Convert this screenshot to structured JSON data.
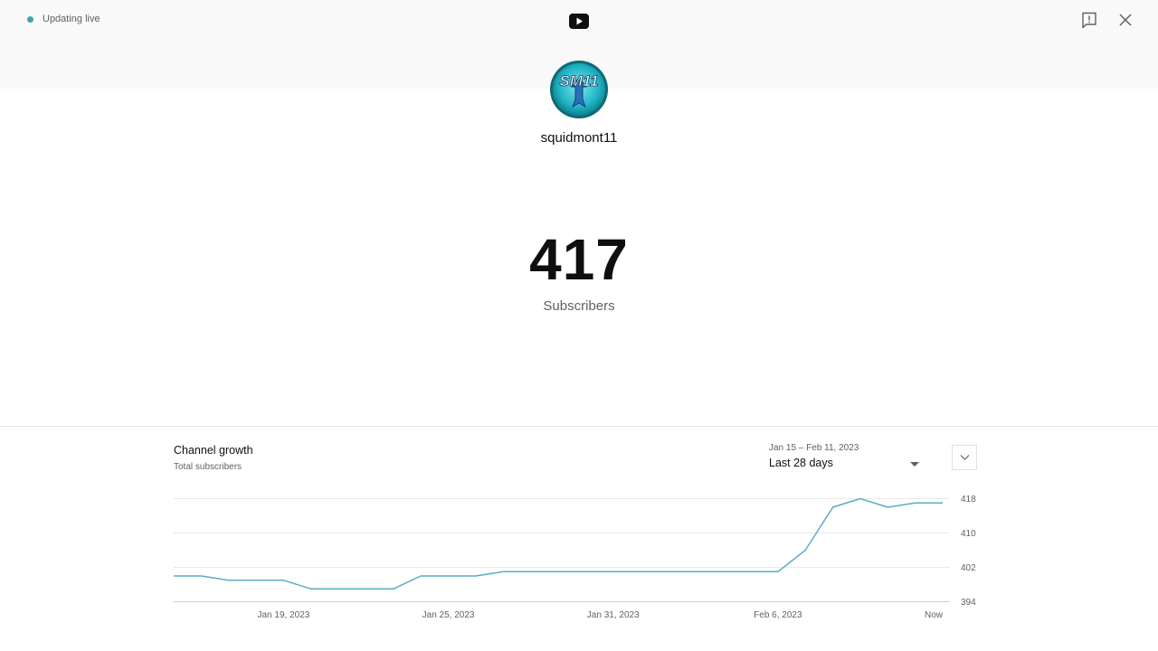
{
  "header": {
    "live_status": "Updating live",
    "live_color": "#3ea6a6",
    "logo_icon": "youtube-icon",
    "feedback_icon": "feedback-icon",
    "close_icon": "close-icon"
  },
  "channel": {
    "name": "squidmont11",
    "avatar_text": "SM11"
  },
  "stats": {
    "count": "417",
    "label": "Subscribers"
  },
  "growth": {
    "title": "Channel growth",
    "subtitle": "Total subscribers",
    "date_range": "Jan 15 – Feb 11, 2023",
    "period": "Last 28 days",
    "line_color": "#5aacc5"
  },
  "chart_data": {
    "type": "line",
    "title": "Channel growth",
    "subtitle": "Total subscribers",
    "x_start": "Jan 15, 2023",
    "x_end": "Feb 11, 2023",
    "x_tick_labels": [
      {
        "label": "Jan 19, 2023",
        "day": 4
      },
      {
        "label": "Jan 25, 2023",
        "day": 10
      },
      {
        "label": "Jan 31, 2023",
        "day": 16
      },
      {
        "label": "Feb 6, 2023",
        "day": 22
      },
      {
        "label": "Now",
        "day": 28
      }
    ],
    "y_ticks": [
      394,
      402,
      410,
      418
    ],
    "ylim": [
      394,
      418
    ],
    "grid": true,
    "series": [
      {
        "x": [
          0,
          1,
          2,
          3,
          4,
          5,
          6,
          7,
          8,
          9,
          10,
          11,
          12,
          13,
          14,
          15,
          16,
          17,
          18,
          19,
          20,
          21,
          22,
          23,
          24,
          25,
          26,
          27,
          28
        ],
        "values": [
          400,
          400,
          399,
          399,
          399,
          397,
          397,
          397,
          397,
          400,
          400,
          400,
          401,
          401,
          401,
          401,
          401,
          401,
          401,
          401,
          401,
          401,
          401,
          406,
          416,
          418,
          416,
          417,
          417
        ]
      }
    ]
  }
}
